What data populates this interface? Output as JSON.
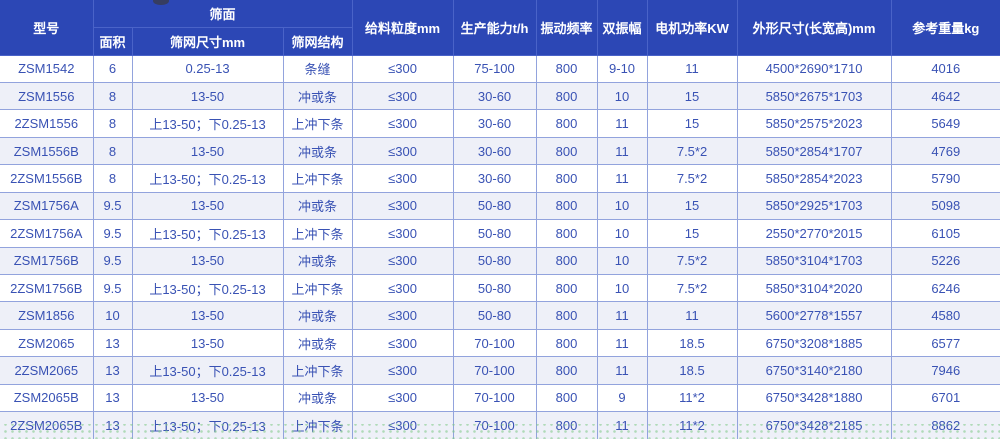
{
  "table": {
    "group_header": "筛面",
    "columns": [
      {
        "key": "model",
        "label": "型号"
      },
      {
        "key": "area",
        "label": "面积"
      },
      {
        "key": "mesh_size",
        "label": "筛网尺寸mm"
      },
      {
        "key": "mesh_structure",
        "label": "筛网结构"
      },
      {
        "key": "feed_size",
        "label": "给料粒度mm"
      },
      {
        "key": "capacity",
        "label": "生产能力t/h"
      },
      {
        "key": "frequency",
        "label": "振动频率"
      },
      {
        "key": "amplitude",
        "label": "双振幅"
      },
      {
        "key": "motor_power",
        "label": "电机功率KW"
      },
      {
        "key": "dimensions",
        "label": "外形尺寸(长宽高)mm"
      },
      {
        "key": "weight",
        "label": "参考重量kg"
      }
    ],
    "rows": [
      [
        "ZSM1542",
        "6",
        "0.25-13",
        "条缝",
        "≤300",
        "75-100",
        "800",
        "9-10",
        "11",
        "4500*2690*1710",
        "4016"
      ],
      [
        "ZSM1556",
        "8",
        "13-50",
        "冲或条",
        "≤300",
        "30-60",
        "800",
        "10",
        "15",
        "5850*2675*1703",
        "4642"
      ],
      [
        "2ZSM1556",
        "8",
        "上13-50；下0.25-13",
        "上冲下条",
        "≤300",
        "30-60",
        "800",
        "11",
        "15",
        "5850*2575*2023",
        "5649"
      ],
      [
        "ZSM1556B",
        "8",
        "13-50",
        "冲或条",
        "≤300",
        "30-60",
        "800",
        "11",
        "7.5*2",
        "5850*2854*1707",
        "4769"
      ],
      [
        "2ZSM1556B",
        "8",
        "上13-50；下0.25-13",
        "上冲下条",
        "≤300",
        "30-60",
        "800",
        "11",
        "7.5*2",
        "5850*2854*2023",
        "5790"
      ],
      [
        "ZSM1756A",
        "9.5",
        "13-50",
        "冲或条",
        "≤300",
        "50-80",
        "800",
        "10",
        "15",
        "5850*2925*1703",
        "5098"
      ],
      [
        "2ZSM1756A",
        "9.5",
        "上13-50；下0.25-13",
        "上冲下条",
        "≤300",
        "50-80",
        "800",
        "10",
        "15",
        "2550*2770*2015",
        "6105"
      ],
      [
        "ZSM1756B",
        "9.5",
        "13-50",
        "冲或条",
        "≤300",
        "50-80",
        "800",
        "10",
        "7.5*2",
        "5850*3104*1703",
        "5226"
      ],
      [
        "2ZSM1756B",
        "9.5",
        "上13-50；下0.25-13",
        "上冲下条",
        "≤300",
        "50-80",
        "800",
        "10",
        "7.5*2",
        "5850*3104*2020",
        "6246"
      ],
      [
        "ZSM1856",
        "10",
        "13-50",
        "冲或条",
        "≤300",
        "50-80",
        "800",
        "11",
        "11",
        "5600*2778*1557",
        "4580"
      ],
      [
        "ZSM2065",
        "13",
        "13-50",
        "冲或条",
        "≤300",
        "70-100",
        "800",
        "11",
        "18.5",
        "6750*3208*1885",
        "6577"
      ],
      [
        "2ZSM2065",
        "13",
        "上13-50；下0.25-13",
        "上冲下条",
        "≤300",
        "70-100",
        "800",
        "11",
        "18.5",
        "6750*3140*2180",
        "7946"
      ],
      [
        "ZSM2065B",
        "13",
        "13-50",
        "冲或条",
        "≤300",
        "70-100",
        "800",
        "9",
        "11*2",
        "6750*3428*1880",
        "6701"
      ],
      [
        "2ZSM2065B",
        "13",
        "上13-50；下0.25-13",
        "上冲下条",
        "≤300",
        "70-100",
        "800",
        "11",
        "11*2",
        "6750*3428*2185",
        "8862"
      ]
    ],
    "colors": {
      "header_bg": "#2c47b5",
      "header_text": "#ffffff",
      "body_text": "#3952b4",
      "row_alt_bg": "#eef0f8",
      "border": "#92a3dd",
      "bottom_dots": "#7ec984"
    }
  }
}
